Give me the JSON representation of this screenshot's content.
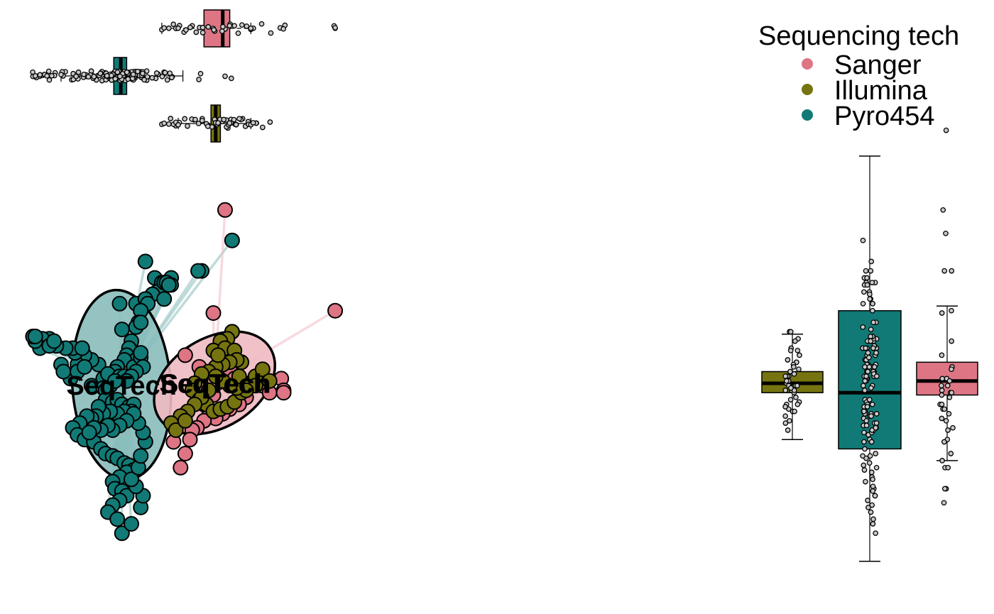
{
  "colors": {
    "Sanger": "#de7585",
    "Illumina": "#767410",
    "Pyro454": "#117a76"
  },
  "chart_data": {
    "type": "scatter",
    "legend": {
      "title": "Sequencing tech",
      "placement": "top-right",
      "entries": [
        "Sanger",
        "Illumina",
        "Pyro454"
      ]
    },
    "centroid_label": "SeqTech",
    "xlim": [
      -1,
      1
    ],
    "ylim": [
      -1,
      1
    ],
    "series": [
      {
        "name": "Pyro454",
        "centroid": [
          -0.542,
          -0.006
        ],
        "ellipse": {
          "rx": 0.21,
          "ry": 0.405,
          "angle": -4
        },
        "points": [
          [
            -0.07,
            0.61
          ],
          [
            -0.2,
            0.48
          ],
          [
            -0.215,
            0.48
          ],
          [
            -0.44,
            0.52
          ],
          [
            -0.4,
            0.45
          ],
          [
            -0.37,
            0.43
          ],
          [
            -0.38,
            0.39
          ],
          [
            -0.39,
            0.39
          ],
          [
            -0.41,
            0.38
          ],
          [
            -0.48,
            0.34
          ],
          [
            -0.44,
            0.36
          ],
          [
            -0.43,
            0.34
          ],
          [
            -0.46,
            0.31
          ],
          [
            -0.47,
            0.26
          ],
          [
            -0.33,
            0.45
          ],
          [
            -0.36,
            0.43
          ],
          [
            -0.35,
            0.43
          ],
          [
            -0.55,
            0.34
          ],
          [
            -0.48,
            0.24
          ],
          [
            -0.33,
            0.42
          ],
          [
            -0.34,
            0.42
          ],
          [
            -0.36,
            0.36
          ],
          [
            -0.46,
            0.26
          ],
          [
            -0.54,
            0.23
          ],
          [
            -0.5,
            0.18
          ],
          [
            -0.51,
            0.15
          ],
          [
            -0.52,
            0.12
          ],
          [
            -0.48,
            0.1
          ],
          [
            -0.53,
            0.1
          ],
          [
            -0.56,
            0.07
          ],
          [
            -0.57,
            0.05
          ],
          [
            -0.6,
            0.03
          ],
          [
            -0.62,
            0.02
          ],
          [
            -0.64,
            0.08
          ],
          [
            -0.67,
            0.1
          ],
          [
            -0.7,
            0.12
          ],
          [
            -0.73,
            0.08
          ],
          [
            -0.74,
            0.13
          ],
          [
            -0.75,
            0.15
          ],
          [
            -0.78,
            0.15
          ],
          [
            -0.8,
            0.08
          ],
          [
            -0.82,
            0.16
          ],
          [
            -0.85,
            0.19
          ],
          [
            -0.88,
            0.19
          ],
          [
            -0.89,
            0.15
          ],
          [
            -0.91,
            0.18
          ],
          [
            -0.92,
            0.2
          ],
          [
            -0.91,
            0.2
          ],
          [
            -0.85,
            0.16
          ],
          [
            -0.83,
            0.18
          ],
          [
            -0.76,
            0.02
          ],
          [
            -0.79,
            0.05
          ],
          [
            -0.73,
            0.05
          ],
          [
            -0.7,
            0.07
          ],
          [
            -0.71,
            0.15
          ],
          [
            -0.67,
            -0.01
          ],
          [
            -0.62,
            -0.02
          ],
          [
            -0.59,
            -0.01
          ],
          [
            -0.6,
            0.04
          ],
          [
            -0.55,
            0.03
          ],
          [
            -0.53,
            0.03
          ],
          [
            -0.49,
            0.07
          ],
          [
            -0.46,
            0.11
          ],
          [
            -0.46,
            0.13
          ],
          [
            -0.45,
            0.07
          ],
          [
            -0.48,
            0.05
          ],
          [
            -0.5,
            0.03
          ],
          [
            -0.52,
            0.01
          ],
          [
            -0.57,
            0.01
          ],
          [
            -0.61,
            -0.03
          ],
          [
            -0.61,
            -0.07
          ],
          [
            -0.58,
            -0.08
          ],
          [
            -0.56,
            -0.07
          ],
          [
            -0.54,
            -0.09
          ],
          [
            -0.51,
            -0.1
          ],
          [
            -0.49,
            -0.09
          ],
          [
            -0.5,
            -0.12
          ],
          [
            -0.53,
            -0.12
          ],
          [
            -0.56,
            -0.13
          ],
          [
            -0.59,
            -0.12
          ],
          [
            -0.62,
            -0.13
          ],
          [
            -0.64,
            -0.1
          ],
          [
            -0.65,
            -0.14
          ],
          [
            -0.67,
            -0.15
          ],
          [
            -0.69,
            -0.14
          ],
          [
            -0.72,
            -0.17
          ],
          [
            -0.75,
            -0.19
          ],
          [
            -0.73,
            -0.22
          ],
          [
            -0.7,
            -0.24
          ],
          [
            -0.66,
            -0.25
          ],
          [
            -0.63,
            -0.28
          ],
          [
            -0.61,
            -0.3
          ],
          [
            -0.58,
            -0.31
          ],
          [
            -0.56,
            -0.32
          ],
          [
            -0.53,
            -0.34
          ],
          [
            -0.51,
            -0.35
          ],
          [
            -0.49,
            -0.37
          ],
          [
            -0.52,
            -0.38
          ],
          [
            -0.55,
            -0.4
          ],
          [
            -0.58,
            -0.42
          ],
          [
            -0.57,
            -0.45
          ],
          [
            -0.54,
            -0.46
          ],
          [
            -0.52,
            -0.48
          ],
          [
            -0.55,
            -0.5
          ],
          [
            -0.58,
            -0.52
          ],
          [
            -0.6,
            -0.55
          ],
          [
            -0.56,
            -0.58
          ],
          [
            -0.54,
            -0.64
          ],
          [
            -0.5,
            -0.6
          ],
          [
            -0.46,
            -0.53
          ],
          [
            -0.45,
            -0.48
          ],
          [
            -0.48,
            -0.44
          ],
          [
            -0.5,
            -0.41
          ],
          [
            -0.47,
            -0.36
          ],
          [
            -0.46,
            -0.31
          ],
          [
            -0.44,
            -0.25
          ],
          [
            -0.45,
            -0.21
          ],
          [
            -0.47,
            -0.17
          ],
          [
            -0.49,
            -0.13
          ],
          [
            -0.52,
            -0.16
          ],
          [
            -0.55,
            -0.18
          ],
          [
            -0.58,
            -0.2
          ],
          [
            -0.6,
            -0.18
          ],
          [
            -0.63,
            -0.2
          ],
          [
            -0.66,
            -0.19
          ],
          [
            -0.68,
            -0.21
          ]
        ]
      },
      {
        "name": "Sanger",
        "centroid": [
          -0.145,
          0.002
        ],
        "ellipse": {
          "rx": 0.28,
          "ry": 0.19,
          "angle": -32
        },
        "points": [
          [
            -0.1,
            0.74
          ],
          [
            0.37,
            0.31
          ],
          [
            -0.15,
            0.3
          ],
          [
            -0.27,
            0.12
          ],
          [
            -0.21,
            0.07
          ],
          [
            -0.11,
            0.18
          ],
          [
            -0.08,
            0.06
          ],
          [
            -0.06,
            0.02
          ],
          [
            -0.03,
            -0.01
          ],
          [
            0.02,
            0.01
          ],
          [
            0.06,
            -0.01
          ],
          [
            0.09,
            -0.04
          ],
          [
            0.14,
            0.02
          ],
          [
            0.15,
            -0.03
          ],
          [
            0.15,
            -0.04
          ],
          [
            -0.01,
            -0.06
          ],
          [
            -0.04,
            -0.09
          ],
          [
            -0.08,
            -0.11
          ],
          [
            -0.11,
            -0.13
          ],
          [
            -0.14,
            -0.15
          ],
          [
            -0.17,
            -0.11
          ],
          [
            -0.19,
            -0.16
          ],
          [
            -0.22,
            -0.19
          ],
          [
            -0.24,
            -0.2
          ],
          [
            -0.25,
            -0.24
          ],
          [
            -0.27,
            -0.3
          ],
          [
            -0.29,
            -0.36
          ],
          [
            -0.32,
            -0.25
          ],
          [
            -0.19,
            -0.09
          ],
          [
            -0.15,
            -0.05
          ]
        ]
      },
      {
        "name": "Illumina",
        "centroid": [
          -0.14,
          0.002
        ],
        "ellipse": {
          "rx": 0.085,
          "ry": 0.035,
          "angle": -30
        },
        "points": [
          [
            -0.07,
            0.22
          ],
          [
            -0.07,
            0.22
          ],
          [
            -0.09,
            0.19
          ],
          [
            -0.12,
            0.18
          ],
          [
            -0.15,
            0.14
          ],
          [
            -0.1,
            0.15
          ],
          [
            -0.06,
            0.14
          ],
          [
            -0.03,
            0.09
          ],
          [
            -0.05,
            0.1
          ],
          [
            -0.08,
            0.09
          ],
          [
            -0.11,
            0.08
          ],
          [
            -0.14,
            0.07
          ],
          [
            -0.17,
            0.05
          ],
          [
            -0.2,
            0.04
          ],
          [
            -0.23,
            0.0
          ],
          [
            -0.24,
            -0.03
          ],
          [
            -0.21,
            -0.07
          ],
          [
            -0.18,
            -0.09
          ],
          [
            -0.15,
            -0.12
          ],
          [
            -0.12,
            -0.11
          ],
          [
            -0.09,
            -0.1
          ],
          [
            -0.06,
            -0.08
          ],
          [
            -0.03,
            -0.04
          ],
          [
            0.0,
            -0.01
          ],
          [
            0.03,
            0.03
          ],
          [
            0.06,
            0.06
          ],
          [
            0.09,
            0.01
          ],
          [
            0.03,
            -0.01
          ],
          [
            -0.01,
            -0.03
          ],
          [
            -0.05,
            -0.02
          ],
          [
            -0.08,
            -0.01
          ],
          [
            -0.11,
            0.01
          ],
          [
            -0.14,
            0.03
          ],
          [
            -0.17,
            -0.03
          ],
          [
            -0.2,
            -0.06
          ],
          [
            -0.23,
            -0.09
          ],
          [
            -0.26,
            -0.12
          ],
          [
            -0.29,
            -0.14
          ],
          [
            -0.33,
            -0.17
          ],
          [
            -0.31,
            -0.2
          ],
          [
            -0.27,
            -0.16
          ],
          [
            -0.13,
            0.12
          ],
          [
            -0.04,
            0.03
          ]
        ]
      }
    ],
    "x_marginal_boxplot": [
      {
        "name": "Sanger",
        "whisker": [
          -0.37,
          0.01
        ],
        "q": [
          -0.19,
          -0.11,
          -0.08
        ],
        "outliers": [
          -0.37,
          -0.36,
          -0.34,
          -0.31,
          -0.3,
          0.01,
          0.01,
          0.37,
          0.37
        ]
      },
      {
        "name": "Pyro454",
        "whisker": [
          -0.8,
          -0.28
        ],
        "q": [
          -0.575,
          -0.545,
          -0.52
        ],
        "outliers": [
          -0.92,
          -0.91,
          -0.89,
          -0.87,
          -0.86,
          -0.84,
          -0.8,
          -0.1
        ]
      },
      {
        "name": "Illumina",
        "whisker": [
          -0.3,
          0.01
        ],
        "q": [
          -0.16,
          -0.14,
          -0.12
        ],
        "outliers": [
          -0.37,
          -0.36,
          -0.34,
          -0.32,
          -0.31,
          -0.3,
          0.0,
          0.01,
          0.02
        ]
      }
    ],
    "y_marginal_boxplot": [
      {
        "name": "Illumina",
        "whisker": [
          -0.24,
          0.21
        ],
        "q": [
          -0.04,
          0.0,
          0.05
        ]
      },
      {
        "name": "Pyro454",
        "whisker": [
          -0.76,
          0.97
        ],
        "q": [
          -0.28,
          -0.04,
          0.31
        ]
      },
      {
        "name": "Sanger",
        "whisker": [
          -0.33,
          0.33
        ],
        "q": [
          -0.05,
          0.01,
          0.09
        ],
        "outliers": [
          -0.51,
          -0.45,
          -0.45,
          -0.36,
          -0.33,
          0.48,
          0.48,
          0.64,
          1.08
        ]
      }
    ]
  }
}
